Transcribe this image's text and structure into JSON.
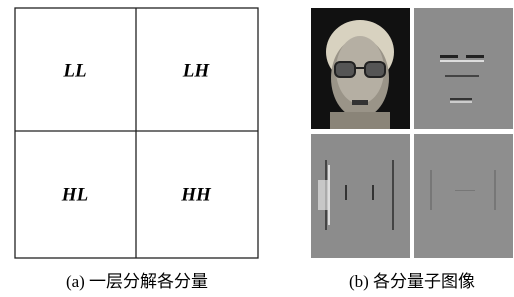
{
  "decomposition": {
    "cells": [
      "LL",
      "LH",
      "HL",
      "HH"
    ],
    "caption": "(a) 一层分解各分量"
  },
  "subimages": {
    "caption": "(b) 各分量子图像"
  }
}
